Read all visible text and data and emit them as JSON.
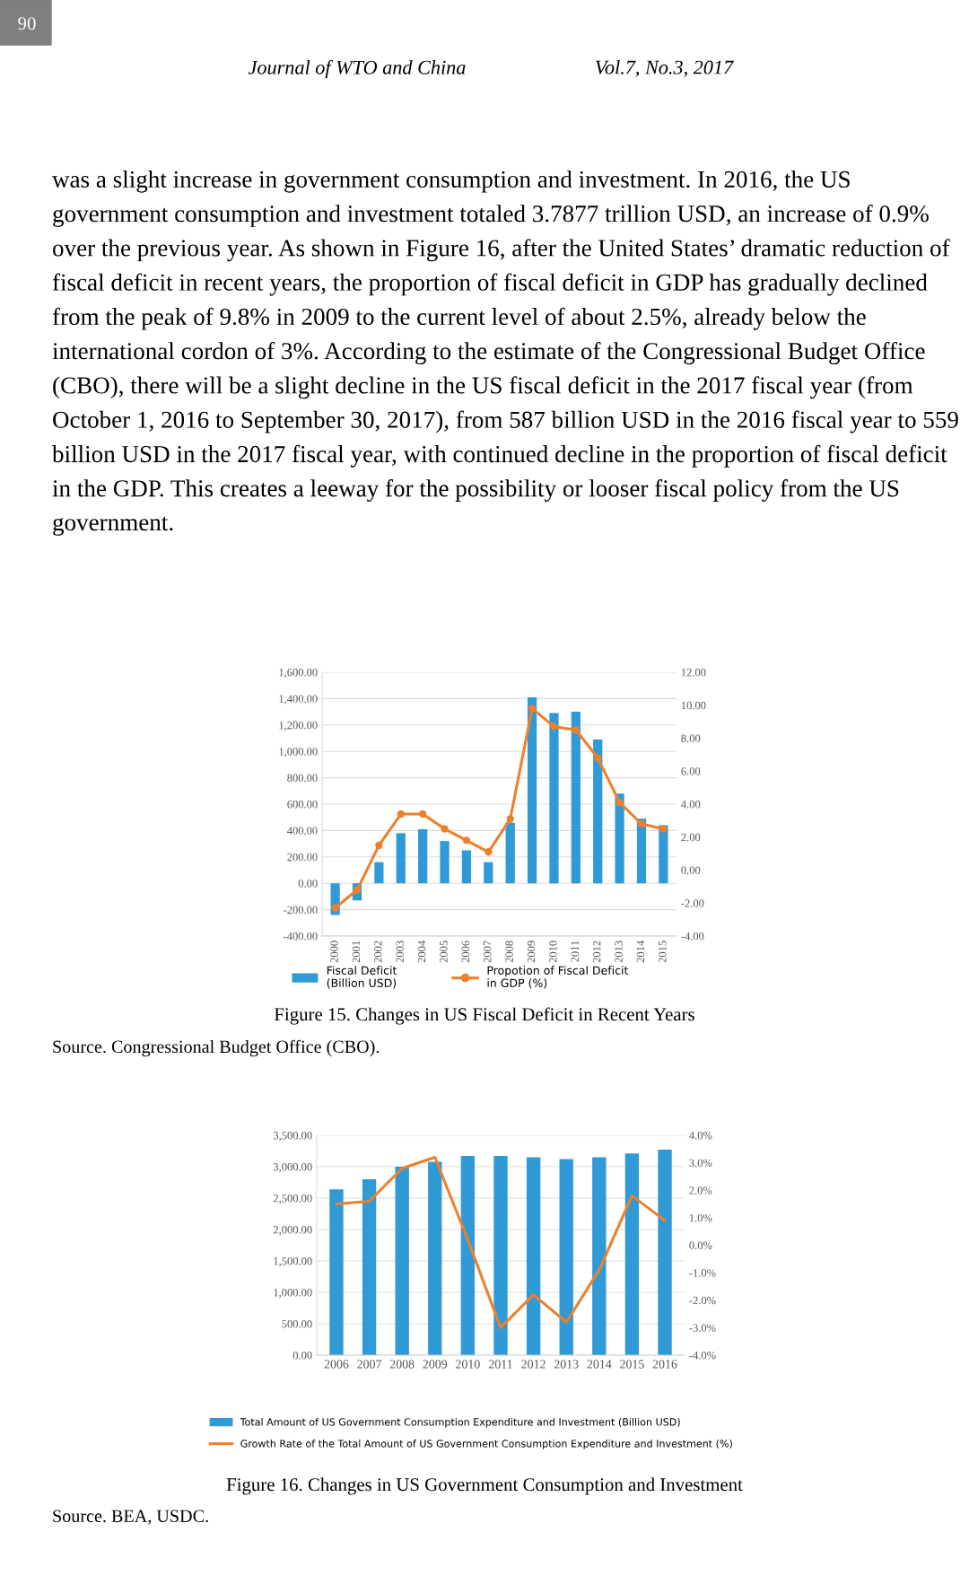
{
  "chart_data": [
    {
      "type": "bar",
      "title": "Figure 15. Changes in US Fiscal Deficit in Recent Years",
      "annotations": [
        "90",
        "Journal of WTO and China",
        "Vol.7, No.3, 2017",
        "was a slight increase in government consumption and investment. In 2016, the US government consumption and investment totaled 3.7877 trillion USD, an increase of 0.9% over the previous year. As shown in Figure 16, after the United States’ dramatic reduction of fiscal deficit in recent years, the proportion of fiscal deficit in GDP has gradually declined from the peak of 9.8% in 2009 to the current level of about 2.5%, already below the international cordon of 3%. According to the estimate of the Congressional Budget Office (CBO), there will be a slight decline in the US fiscal deficit in the 2017 fiscal year (from October 1, 2016 to September 30, 2017), from 587 billion USD in the 2016 fiscal year to 559 billion USD in the 2017 fiscal year, with continued decline in the proportion of fiscal deficit in the GDP. This creates a leeway for the possibility or looser fiscal policy from the US government.",
        "Source. Congressional Budget Office (CBO)."
      ],
      "categories": [
        "2000",
        "2001",
        "2002",
        "2003",
        "2004",
        "2005",
        "2006",
        "2007",
        "2008",
        "2009",
        "2010",
        "2011",
        "2012",
        "2013",
        "2014",
        "2015"
      ],
      "series": [
        {
          "name": "Fiscal Deficit\n(Billion USD)",
          "color": "#309ad6",
          "values": [
            -240,
            -130,
            160,
            380,
            410,
            320,
            250,
            160,
            460,
            1410,
            1290,
            1300,
            1090,
            680,
            490,
            440
          ]
        },
        {
          "name": "Propotion of Fiscal Deficit\nin GDP (%)",
          "type": "line",
          "axis": "y2",
          "color": "#f07f2a",
          "marker": "circle",
          "values": [
            -2.3,
            -1.2,
            1.5,
            3.4,
            3.4,
            2.5,
            1.8,
            1.1,
            3.1,
            9.8,
            8.7,
            8.5,
            6.8,
            4.1,
            2.8,
            2.5
          ]
        }
      ],
      "ylim": [
        -400,
        1600
      ],
      "yticks": [
        {
          "value": -400,
          "label": "-400.00"
        },
        {
          "value": -200,
          "label": "-200.00"
        },
        {
          "value": 0,
          "label": "0.00"
        },
        {
          "value": 200,
          "label": "200.00"
        },
        {
          "value": 400,
          "label": "400.00"
        },
        {
          "value": 600,
          "label": "600.00"
        },
        {
          "value": 800,
          "label": "800.00"
        },
        {
          "value": 1000,
          "label": "1,000.00"
        },
        {
          "value": 1200,
          "label": "1,200.00"
        },
        {
          "value": 1400,
          "label": "1,400.00"
        },
        {
          "value": 1600,
          "label": "1,600.00"
        }
      ],
      "y2lim": [
        -4,
        12
      ],
      "y2ticks": [
        {
          "value": -4,
          "label": "-4.00"
        },
        {
          "value": -2,
          "label": "-2.00"
        },
        {
          "value": 0,
          "label": "0.00"
        },
        {
          "value": 2,
          "label": "2.00"
        },
        {
          "value": 4,
          "label": "4.00"
        },
        {
          "value": 6,
          "label": "6.00"
        },
        {
          "value": 8,
          "label": "8.00"
        },
        {
          "value": 10,
          "label": "10.00"
        },
        {
          "value": 12,
          "label": "12.00"
        }
      ],
      "grid": "y",
      "legend": "bottom"
    },
    {
      "type": "bar",
      "title": "Figure 16. Changes in US Government Consumption and Investment",
      "annotations": [
        "Source. BEA, USDC."
      ],
      "categories": [
        "2006",
        "2007",
        "2008",
        "2009",
        "2010",
        "2011",
        "2012",
        "2013",
        "2014",
        "2015",
        "2016"
      ],
      "series": [
        {
          "name": "Total Amount of US Government Consumption Expenditure and Investment (Billion USD)",
          "color": "#309ad6",
          "values": [
            2640,
            2800,
            3000,
            3080,
            3170,
            3170,
            3150,
            3120,
            3150,
            3210,
            3270
          ]
        },
        {
          "name": "Growth Rate of the Total Amount of US Government Consumption Expenditure and Investment (%)",
          "type": "line",
          "axis": "y2",
          "color": "#f07f2a",
          "values": [
            1.5,
            1.6,
            2.8,
            3.2,
            0.2,
            -3.0,
            -1.8,
            -2.8,
            -0.9,
            1.8,
            0.9
          ]
        }
      ],
      "ylim": [
        0,
        3500
      ],
      "yticks": [
        {
          "value": 0,
          "label": "0.00"
        },
        {
          "value": 500,
          "label": "500.00"
        },
        {
          "value": 1000,
          "label": "1,000.00"
        },
        {
          "value": 1500,
          "label": "1,500.00"
        },
        {
          "value": 2000,
          "label": "2,000.00"
        },
        {
          "value": 2500,
          "label": "2,500.00"
        },
        {
          "value": 3000,
          "label": "3,000.00"
        },
        {
          "value": 3500,
          "label": "3,500.00"
        }
      ],
      "y2lim": [
        -4,
        4
      ],
      "y2ticks": [
        {
          "value": -4,
          "label": "-4.0%"
        },
        {
          "value": -3,
          "label": "-3.0%"
        },
        {
          "value": -2,
          "label": "-2.0%"
        },
        {
          "value": -1,
          "label": "-1.0%"
        },
        {
          "value": 0,
          "label": "0.0%"
        },
        {
          "value": 1,
          "label": "1.0%"
        },
        {
          "value": 2,
          "label": "2.0%"
        },
        {
          "value": 3,
          "label": "3.0%"
        },
        {
          "value": 4,
          "label": "4.0%"
        }
      ],
      "grid": "y",
      "legend": "bottom"
    }
  ]
}
